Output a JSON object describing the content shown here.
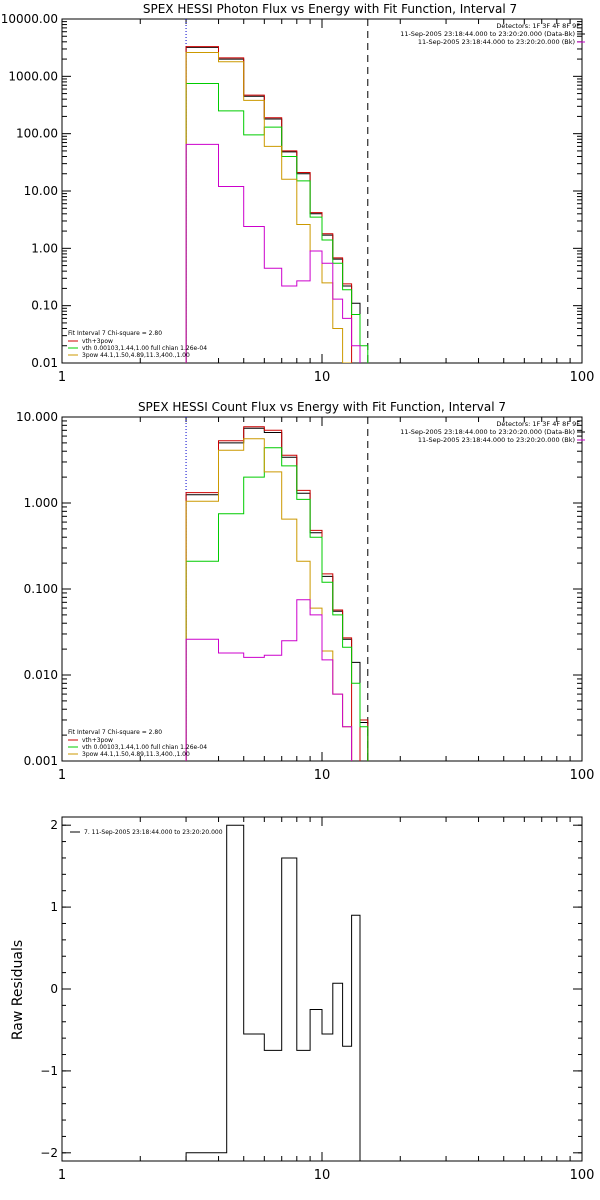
{
  "panels": [
    {
      "id": "photon",
      "title": "SPEX HESSI Photon Flux vs Energy with Fit Function, Interval 7",
      "ylabel": "",
      "yscale": "log",
      "ylim": [
        0.01,
        10000
      ],
      "yticks": [
        0.01,
        0.1,
        1,
        10,
        100,
        1000,
        10000
      ],
      "ytick_labels": [
        "0.01",
        "0.10",
        "1.00",
        "10.00",
        "100.00",
        "1000.00",
        "10000.00"
      ],
      "xticks": [
        1,
        10,
        100
      ],
      "xtick_labels": [
        "1",
        "10",
        "100"
      ],
      "info_lines": [
        "Detectors: 1F 3F 4F 8F 9F",
        "11-Sep-2005 23:18:44.000 to 23:20:20.000 (Data-Bk)",
        "11-Sep-2005 23:18:44.000 to 23:20:20.000 (Bk)"
      ],
      "legend_lines": [
        "Fit Interval 7   Chi-square = 2.80",
        "vth+3pow",
        "vth 0.00103,1.44,1.00  full chian 1.26e-04",
        "3pow 44.1,1.50,4.89,11.3,400.,1.00"
      ]
    },
    {
      "id": "count",
      "title": "SPEX HESSI Count Flux vs Energy with Fit Function, Interval 7",
      "ylabel": "",
      "yscale": "log",
      "ylim": [
        0.001,
        10
      ],
      "yticks": [
        0.001,
        0.01,
        0.1,
        1,
        10
      ],
      "ytick_labels": [
        "0.001",
        "0.010",
        "0.100",
        "1.000",
        "10.000"
      ],
      "xticks": [
        1,
        10,
        100
      ],
      "xtick_labels": [
        "1",
        "10",
        "100"
      ],
      "info_lines": [
        "Detectors: 1F 3F 4F 8F 9F",
        "11-Sep-2005 23:18:44.000 to 23:20:20.000 (Data-Bk)",
        "11-Sep-2005 23:18:44.000 to 23:20:20.000 (Bk)"
      ],
      "legend_lines": [
        "Fit Interval 7   Chi-square = 2.80",
        "vth+3pow",
        "vth 0.00103,1.44,1.00  full chian 1.26e-04",
        "3pow 44.1,1.50,4.89,11.3,400.,1.00"
      ]
    },
    {
      "id": "resid",
      "title": "",
      "ylabel": "Raw Residuals",
      "yscale": "linear",
      "ylim": [
        -2.1,
        2.1
      ],
      "yticks": [
        -2,
        -1,
        0,
        1,
        2
      ],
      "ytick_labels": [
        "−2",
        "−1",
        "0",
        "1",
        "2"
      ],
      "xticks": [
        1,
        10,
        100
      ],
      "xtick_labels": [
        "1",
        "10",
        "100"
      ],
      "info_lines": [],
      "legend_lines": [
        "7. 11-Sep-2005 23:18:44.000 to 23:20:20.000"
      ]
    }
  ],
  "chart_data": [
    {
      "type": "line",
      "title": "SPEX HESSI Photon Flux vs Energy with Fit Function, Interval 7",
      "xscale": "log",
      "yscale": "log",
      "xlim": [
        1,
        100
      ],
      "ylim": [
        0.01,
        10000
      ],
      "vlines": [
        {
          "x": 3,
          "style": "dotted",
          "color": "#0000cc"
        },
        {
          "x": 15,
          "style": "dashed",
          "color": "#000000"
        }
      ],
      "bin_edges": [
        3,
        4,
        5,
        6,
        7,
        8,
        9,
        10,
        11,
        12,
        13,
        14,
        15,
        16,
        17
      ],
      "series": [
        {
          "color": "#000000",
          "values": [
            3200,
            2000,
            450,
            180,
            48,
            20,
            4,
            1.7,
            0.65,
            0.22,
            0.11,
            null,
            null,
            null
          ]
        },
        {
          "color": "#cc0000",
          "values": [
            3300,
            2100,
            470,
            190,
            50,
            21,
            4.2,
            1.8,
            0.68,
            0.24,
            null,
            null,
            null,
            null
          ]
        },
        {
          "color": "#00cc00",
          "values": [
            750,
            250,
            95,
            130,
            40,
            15,
            3.5,
            1.4,
            0.55,
            0.19,
            0.07,
            0.02,
            null,
            null
          ]
        },
        {
          "color": "#cc9900",
          "values": [
            2600,
            1800,
            380,
            60,
            16,
            2.6,
            0.9,
            0.25,
            0.04,
            0.01,
            null,
            null,
            null,
            null
          ]
        },
        {
          "color": "#cc00cc",
          "values": [
            65,
            12,
            2.4,
            0.45,
            0.22,
            0.27,
            0.9,
            0.55,
            0.13,
            0.06,
            0.02,
            null,
            null,
            null
          ]
        }
      ],
      "legend": [
        "vth+3pow",
        "vth 0.00103,1.44,1.00  full chian 1.26e-04",
        "3pow 44.1,1.50,4.89,11.3,400.,1.00"
      ]
    },
    {
      "type": "line",
      "title": "SPEX HESSI Count Flux vs Energy with Fit Function, Interval 7",
      "xscale": "log",
      "yscale": "log",
      "xlim": [
        1,
        100
      ],
      "ylim": [
        0.001,
        10
      ],
      "vlines": [
        {
          "x": 3,
          "style": "dotted",
          "color": "#0000cc"
        },
        {
          "x": 15,
          "style": "dashed",
          "color": "#000000"
        }
      ],
      "bin_edges": [
        3,
        4,
        5,
        6,
        7,
        8,
        9,
        10,
        11,
        12,
        13,
        14,
        15,
        16,
        17
      ],
      "series": [
        {
          "color": "#000000",
          "values": [
            1.25,
            5.0,
            7.4,
            6.6,
            3.4,
            1.3,
            0.45,
            0.14,
            0.055,
            0.026,
            0.014,
            0.0028,
            null,
            null
          ]
        },
        {
          "color": "#cc0000",
          "values": [
            1.32,
            5.3,
            7.7,
            7.0,
            3.6,
            1.4,
            0.48,
            0.15,
            0.057,
            0.027,
            null,
            0.003,
            null,
            null
          ]
        },
        {
          "color": "#00cc00",
          "values": [
            0.21,
            0.75,
            2.0,
            4.4,
            2.7,
            1.1,
            0.4,
            0.12,
            0.05,
            0.021,
            0.008,
            0.0025,
            null,
            null
          ]
        },
        {
          "color": "#cc9900",
          "values": [
            1.05,
            4.1,
            5.6,
            2.3,
            0.65,
            0.21,
            0.06,
            0.019,
            0.006,
            0.0025,
            null,
            null,
            null,
            null
          ]
        },
        {
          "color": "#cc00cc",
          "values": [
            0.026,
            0.018,
            0.016,
            0.017,
            0.025,
            0.075,
            0.05,
            0.015,
            0.006,
            0.0025,
            0.0009,
            null,
            null,
            null
          ]
        }
      ],
      "legend": [
        "vth+3pow",
        "vth 0.00103,1.44,1.00  full chian 1.26e-04",
        "3pow 44.1,1.50,4.89,11.3,400.,1.00"
      ]
    },
    {
      "type": "line",
      "title": "",
      "ylabel": "Raw Residuals",
      "xscale": "log",
      "yscale": "linear",
      "xlim": [
        1,
        100
      ],
      "ylim": [
        -2.1,
        2.1
      ],
      "bin_edges": [
        3,
        4.3,
        5,
        6,
        7,
        8,
        9,
        10,
        11,
        12,
        13,
        14,
        15
      ],
      "series": [
        {
          "color": "#000000",
          "values": [
            -2.0,
            2.0,
            -0.55,
            -0.75,
            1.6,
            -0.75,
            -0.25,
            -0.55,
            0.07,
            -0.7,
            0.9,
            null
          ]
        }
      ],
      "legend": [
        "7. 11-Sep-2005 23:18:44.000 to 23:20:20.000"
      ]
    }
  ]
}
